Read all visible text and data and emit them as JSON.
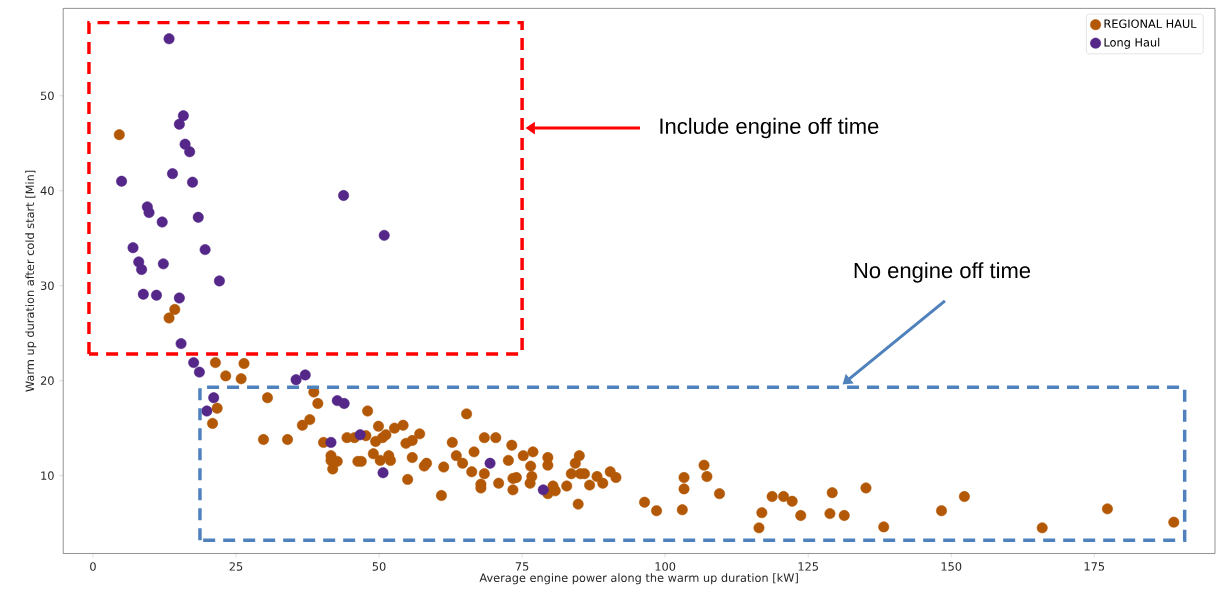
{
  "chart_data": {
    "type": "scatter",
    "xlabel": "Average engine power along the warm up duration [kW]",
    "ylabel": "Warm up duration after cold start [Min]",
    "xlim": [
      -5.2,
      196.1
    ],
    "ylim": [
      1.8,
      59.2
    ],
    "xticks": [
      0,
      25,
      50,
      75,
      100,
      125,
      150,
      175
    ],
    "yticks": [
      10,
      20,
      30,
      40,
      50
    ],
    "grid": false,
    "legend": "top right",
    "marker": "circle",
    "annotations": [
      "Include engine off time",
      "No engine off time"
    ],
    "series": [
      {
        "name": "REGIONAL HAUL",
        "color": "#b35806",
        "x": [
          4.6,
          14.3,
          13.3,
          21.4,
          26.4,
          23.2,
          25.9,
          21.7,
          20.9,
          30.5,
          29.8,
          34.0,
          38.6,
          39.3,
          37.9,
          36.6,
          48.0,
          40.3,
          41.6,
          41.6,
          42.7,
          41.9,
          44.4,
          45.7,
          47.7,
          46.3,
          46.9,
          49.0,
          49.9,
          49.4,
          50.6,
          51.2,
          50.2,
          51.7,
          52.0,
          52.7,
          54.2,
          55.0,
          54.7,
          55.8,
          55.8,
          57.1,
          57.9,
          58.3,
          61.3,
          60.9,
          62.8,
          63.5,
          64.6,
          65.3,
          66.2,
          66.6,
          68.4,
          70.4,
          68.4,
          67.8,
          67.8,
          70.9,
          72.6,
          73.2,
          75.2,
          76.9,
          76.5,
          76.7,
          76.4,
          73.4,
          74.0,
          73.4,
          79.5,
          79.5,
          79.5,
          80.4,
          80.8,
          82.8,
          83.6,
          84.3,
          85.0,
          85.2,
          85.9,
          84.8,
          86.8,
          88.1,
          89.1,
          90.4,
          91.4,
          96.4,
          98.5,
          103.3,
          103.3,
          103.0,
          106.8,
          107.3,
          109.5,
          118.7,
          120.7,
          122.2,
          116.9,
          123.7,
          116.4,
          128.8,
          129.2,
          131.3,
          135.1,
          138.2,
          148.3,
          152.3,
          165.9,
          177.3,
          188.9
        ],
        "values": [
          45.9,
          27.5,
          26.6,
          21.9,
          21.8,
          20.5,
          20.2,
          17.1,
          15.5,
          18.2,
          13.8,
          13.8,
          18.8,
          17.6,
          15.9,
          15.3,
          16.8,
          13.5,
          12.1,
          11.6,
          11.5,
          10.7,
          14.0,
          14.0,
          14.2,
          11.5,
          11.5,
          12.3,
          15.2,
          13.6,
          14.0,
          14.3,
          11.6,
          12.1,
          11.6,
          15.0,
          15.3,
          9.6,
          13.4,
          13.7,
          11.9,
          14.4,
          11.0,
          11.3,
          10.9,
          7.9,
          13.5,
          12.1,
          11.3,
          16.5,
          10.4,
          12.5,
          14.0,
          14.0,
          10.2,
          9.1,
          8.7,
          9.2,
          11.6,
          13.2,
          12.1,
          12.5,
          11.0,
          9.9,
          9.2,
          9.7,
          9.8,
          8.5,
          11.9,
          11.1,
          8.1,
          8.9,
          8.4,
          8.9,
          10.2,
          11.3,
          12.1,
          10.2,
          10.2,
          7.0,
          9.0,
          9.9,
          9.2,
          10.4,
          9.8,
          7.2,
          6.3,
          9.8,
          8.6,
          6.4,
          11.1,
          9.9,
          8.1,
          7.8,
          7.8,
          7.3,
          6.1,
          5.8,
          4.5,
          6.0,
          8.2,
          5.8,
          8.7,
          4.6,
          6.3,
          7.8,
          4.5,
          6.5,
          5.1
        ]
      },
      {
        "name": "Long Haul",
        "color": "#542788",
        "x": [
          13.3,
          15.8,
          15.1,
          16.1,
          16.9,
          13.9,
          5.0,
          17.4,
          9.5,
          9.8,
          12.1,
          18.4,
          7.0,
          19.6,
          8.0,
          8.5,
          12.3,
          22.1,
          8.8,
          11.1,
          15.1,
          43.8,
          50.9,
          15.4,
          17.6,
          18.6,
          37.1,
          35.5,
          21.1,
          19.9,
          42.7,
          43.9,
          41.6,
          46.7,
          50.7,
          69.4,
          78.7
        ],
        "values": [
          56.0,
          47.9,
          47.0,
          44.9,
          44.1,
          41.8,
          41.0,
          40.9,
          38.3,
          37.7,
          36.7,
          37.2,
          34.0,
          33.8,
          32.5,
          31.7,
          32.3,
          30.5,
          29.1,
          29.0,
          28.7,
          39.5,
          35.3,
          23.9,
          21.9,
          20.9,
          20.6,
          20.1,
          18.2,
          16.8,
          17.9,
          17.6,
          13.5,
          14.3,
          10.3,
          11.3,
          8.5
        ]
      }
    ]
  }
}
